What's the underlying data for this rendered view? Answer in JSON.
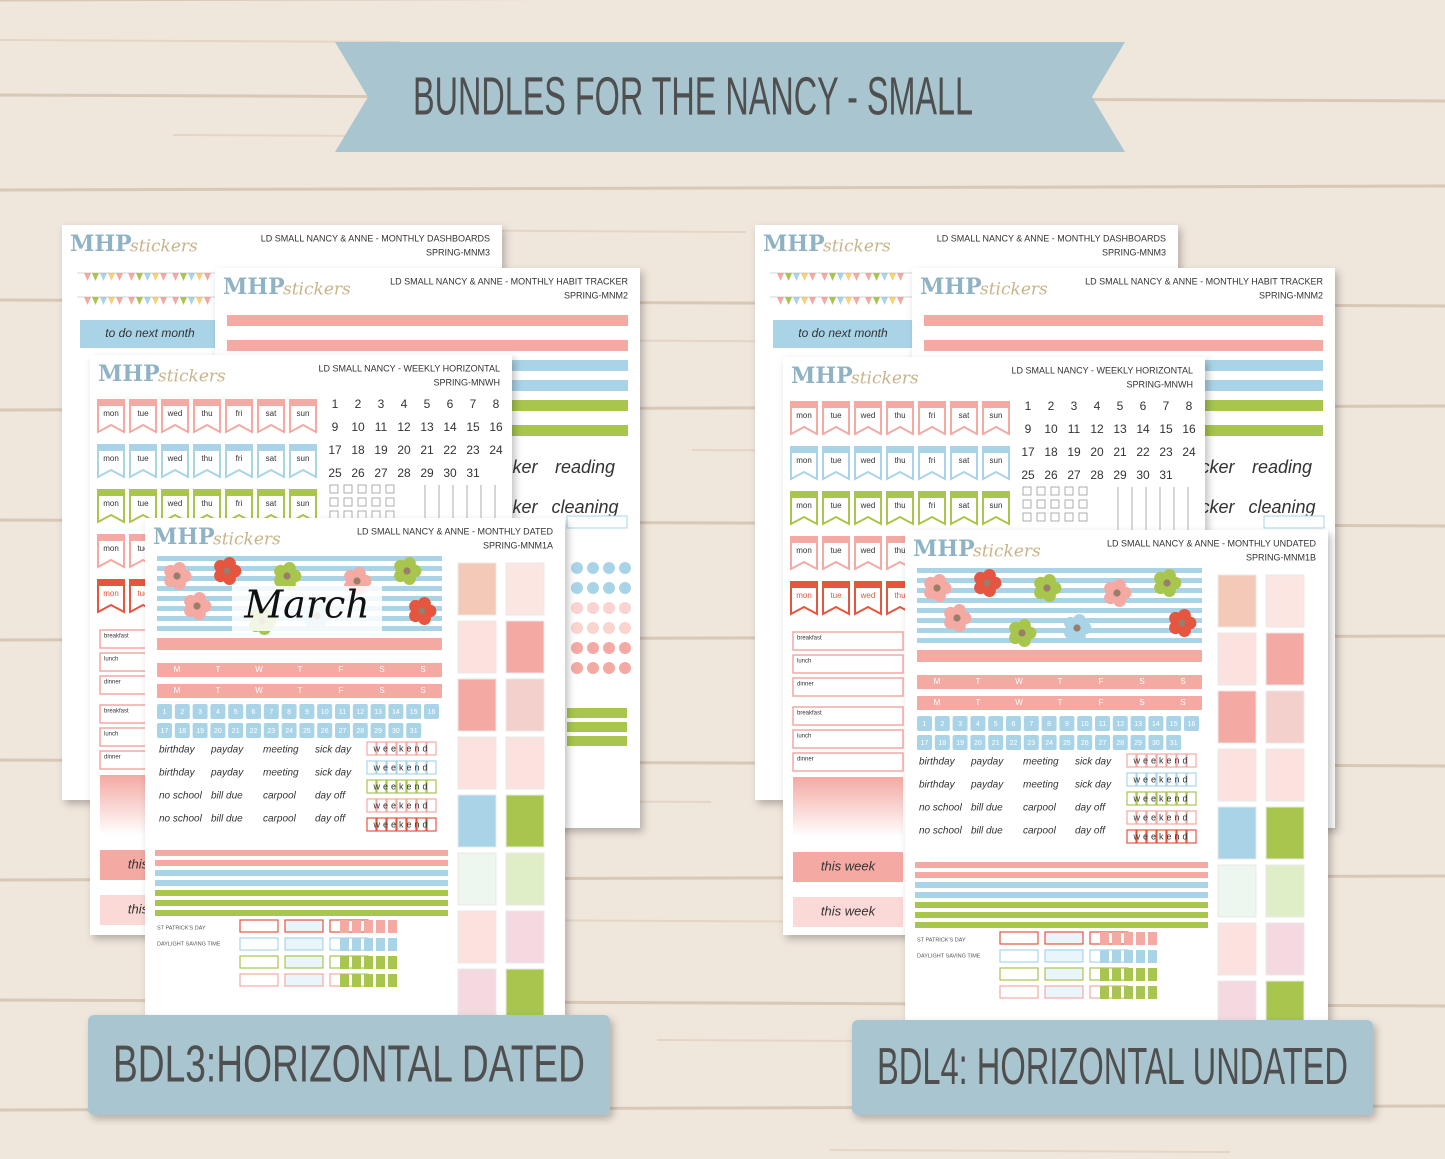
{
  "banner": {
    "title": "BUNDLES FOR THE NANCY - SMALL"
  },
  "brand": {
    "mark": "MHP",
    "script": "stickers"
  },
  "bundles": [
    {
      "label": "BDL3:HORIZONTAL DATED",
      "month": "March",
      "sheets": [
        {
          "title": "LD SMALL NANCY & ANNE - MONTHLY  DASHBOARDS",
          "code": "SPRING-MNM3"
        },
        {
          "title": "LD SMALL NANCY & ANNE - MONTHLY HABIT TRACKER",
          "code": "SPRING-MNM2"
        },
        {
          "title": "LD SMALL NANCY - WEEKLY HORIZONTAL",
          "code": "SPRING-MNWH"
        },
        {
          "title": "LD SMALL NANCY & ANNE - MONTHLY DATED",
          "code": "SPRING-MNM1A"
        }
      ]
    },
    {
      "label": "BDL4: HORIZONTAL UNDATED",
      "sheets": [
        {
          "title": "LD SMALL NANCY & ANNE - MONTHLY  DASHBOARDS",
          "code": "SPRING-MNM3"
        },
        {
          "title": "LD SMALL NANCY & ANNE - MONTHLY HABIT TRACKER",
          "code": "SPRING-MNM2"
        },
        {
          "title": "LD SMALL NANCY - WEEKLY HORIZONTAL",
          "code": "SPRING-MNWH"
        },
        {
          "title": "LD SMALL NANCY & ANNE - MONTHLY UNDATED",
          "code": "SPRING-MNM1B"
        }
      ]
    }
  ],
  "dashboard": {
    "todo": "to do next month"
  },
  "habit": {
    "words": [
      "tracker",
      "reading",
      "tracker",
      "cleaning"
    ]
  },
  "weekly": {
    "days": [
      "mon",
      "tue",
      "wed",
      "thu",
      "fri",
      "sat",
      "sun"
    ],
    "dates": [
      "1",
      "2",
      "3",
      "4",
      "5",
      "6",
      "7",
      "8",
      "9",
      "10",
      "11",
      "12",
      "13",
      "14",
      "15",
      "16",
      "17",
      "18",
      "19",
      "20",
      "21",
      "22",
      "23",
      "24",
      "25",
      "26",
      "27",
      "28",
      "29",
      "30",
      "31"
    ],
    "meals": [
      "breakfast",
      "lunch",
      "dinner"
    ],
    "this_week": "this week"
  },
  "monthly": {
    "weekdays": [
      "M",
      "T",
      "W",
      "T",
      "F",
      "S",
      "S"
    ],
    "words": [
      [
        "birthday",
        "payday",
        "meeting",
        "sick day"
      ],
      [
        "birthday",
        "payday",
        "meeting",
        "sick day"
      ],
      [
        "no school",
        "bill due",
        "carpool",
        "day off"
      ],
      [
        "no school",
        "bill due",
        "carpool",
        "day off"
      ]
    ],
    "weekend": "weekend",
    "events": [
      "ST PATRICK'S DAY",
      "DAYLIGHT SAVING TIME"
    ]
  }
}
